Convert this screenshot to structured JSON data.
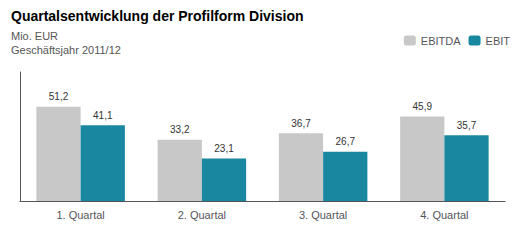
{
  "chart_data": {
    "type": "bar",
    "title": "Quartalsentwicklung der Profilform Division",
    "subtitle": [
      "Mio. EUR",
      "Geschäftsjahr 2011/12"
    ],
    "categories": [
      "1. Quartal",
      "2. Quartal",
      "3. Quartal",
      "4. Quartal"
    ],
    "series": [
      {
        "name": "EBITDA",
        "color": "#c8c8c8",
        "values": [
          51.2,
          33.2,
          36.7,
          45.9
        ],
        "value_labels": [
          "51,2",
          "33,2",
          "36,7",
          "45,9"
        ]
      },
      {
        "name": "EBIT",
        "color": "#1a87a0",
        "values": [
          41.1,
          23.1,
          26.7,
          35.7
        ],
        "value_labels": [
          "41,1",
          "23,1",
          "26,7",
          "35,7"
        ]
      }
    ],
    "ylim": [
      0,
      70
    ],
    "yticks": [],
    "grid": false,
    "legend": "upper right",
    "data_labels": true,
    "tick_labels": "x"
  }
}
